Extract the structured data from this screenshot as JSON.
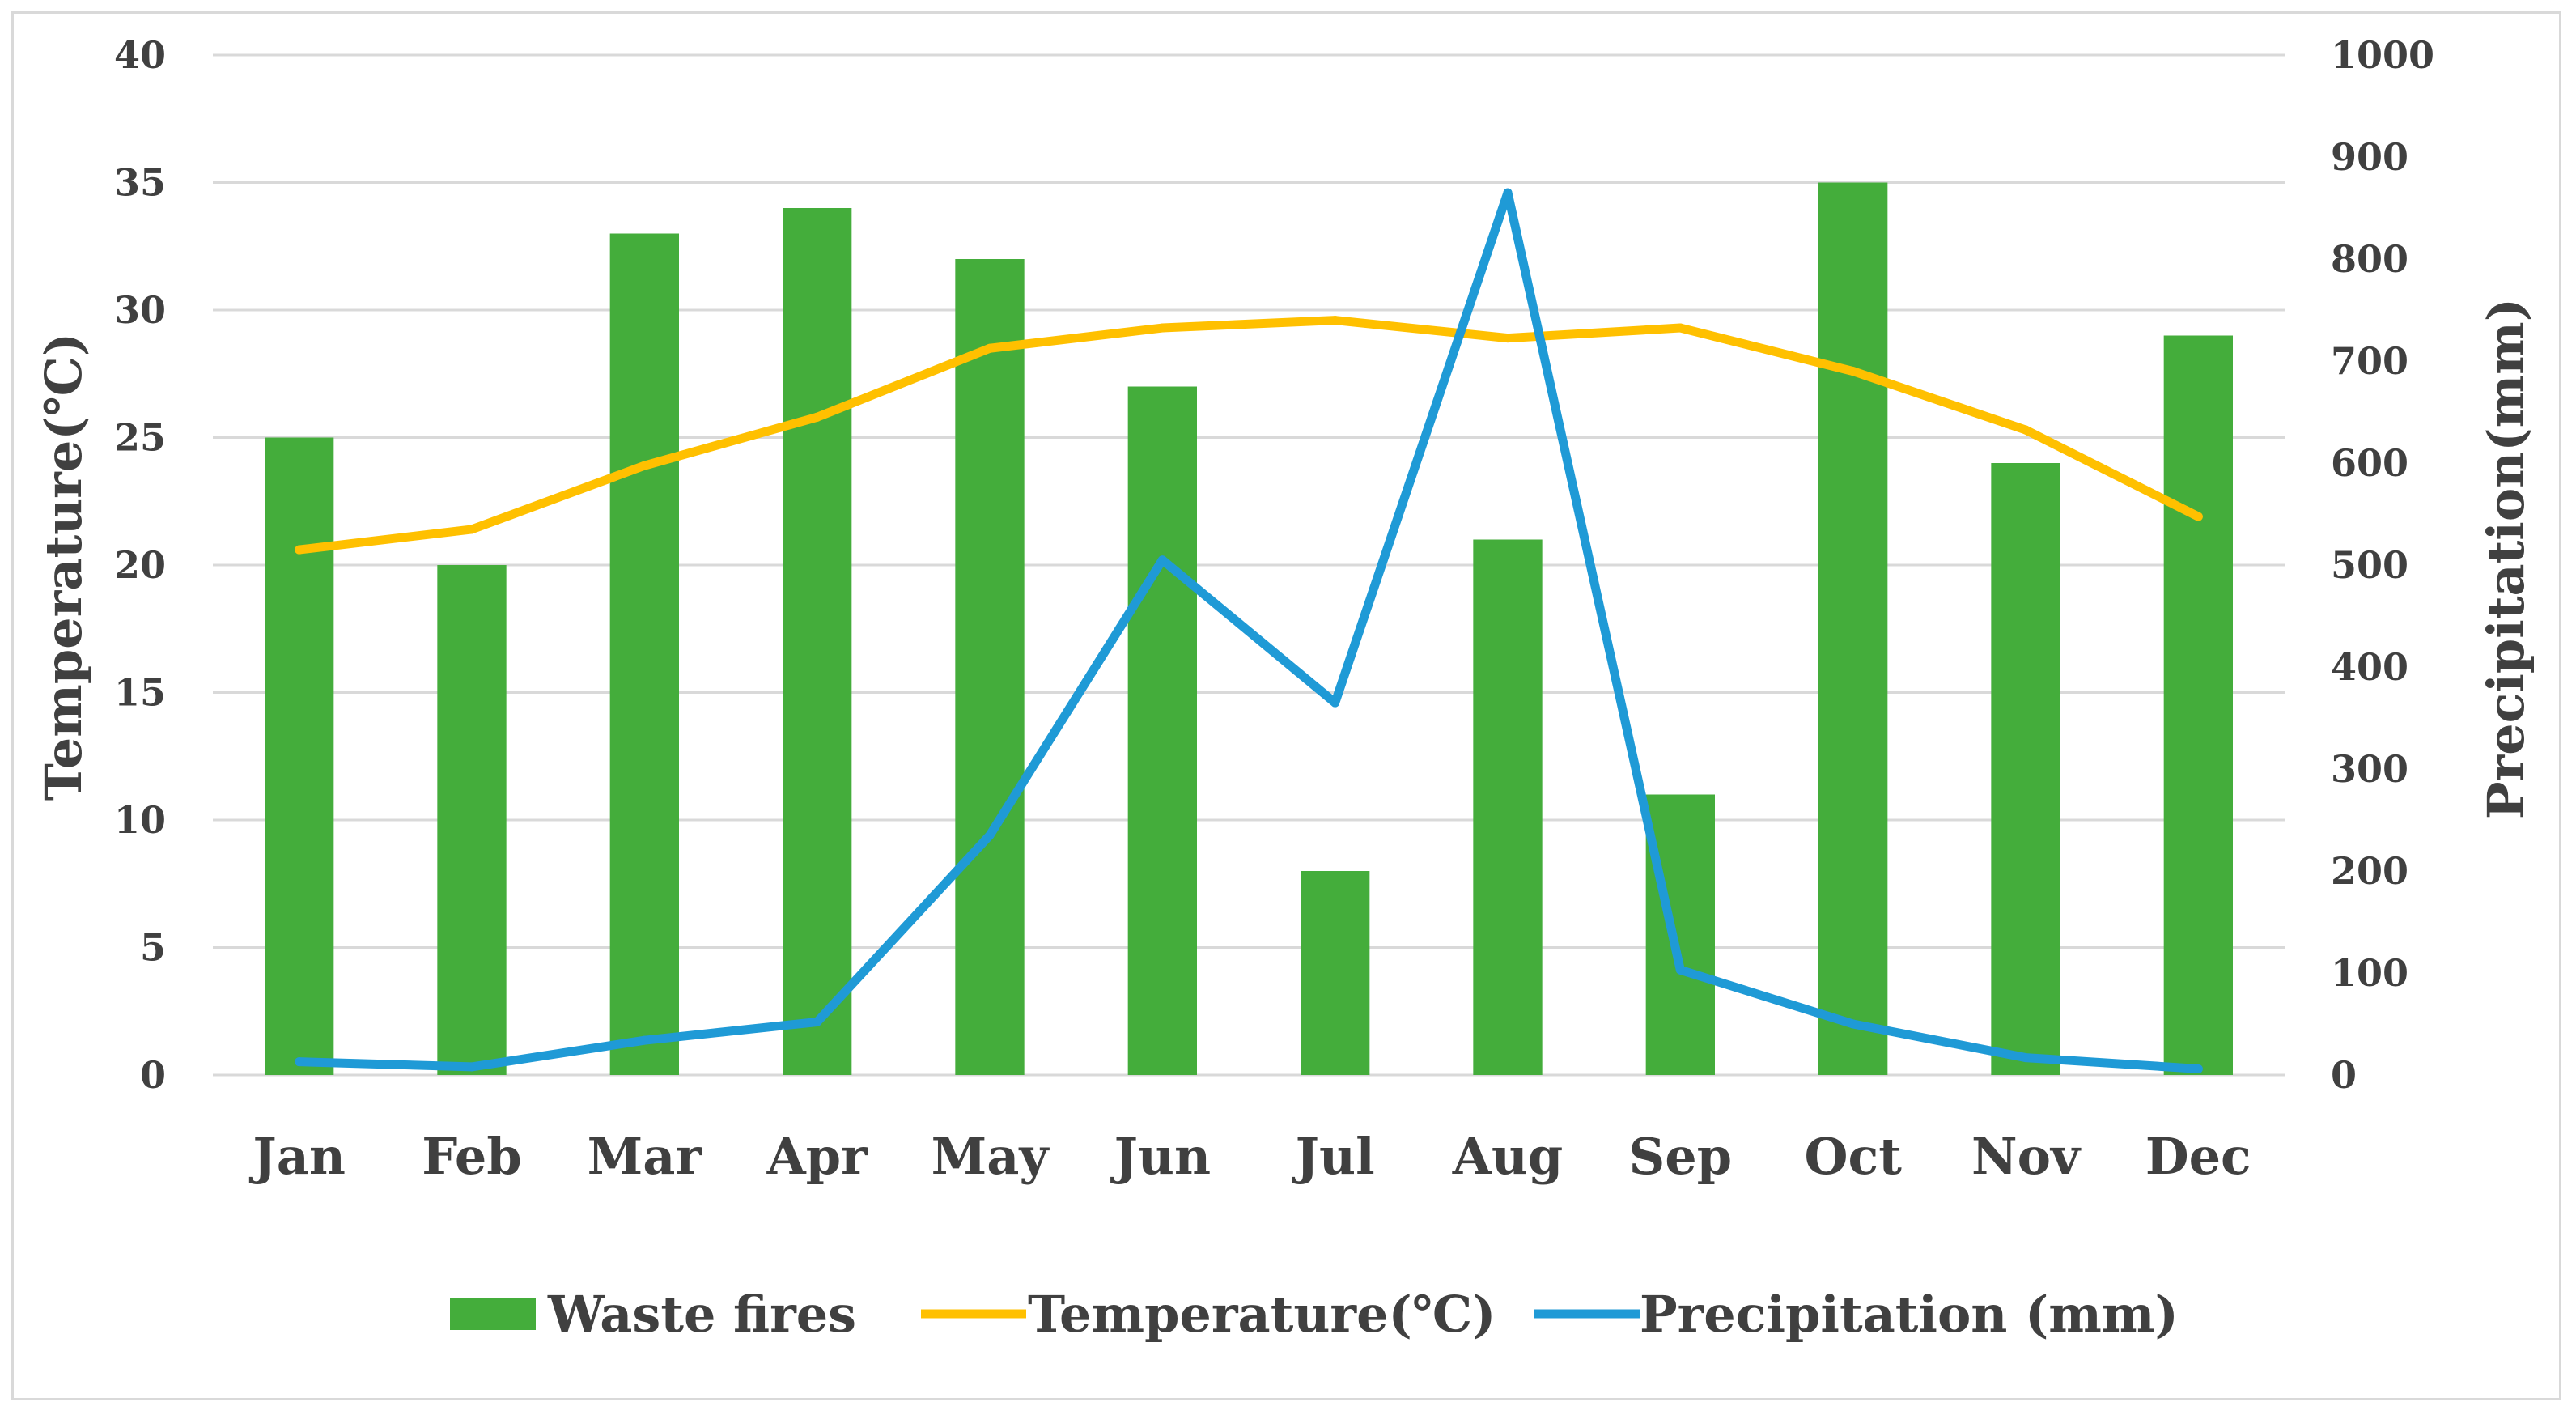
{
  "chart_data": {
    "type": "bar",
    "categories": [
      "Jan",
      "Feb",
      "Mar",
      "Apr",
      "May",
      "Jun",
      "Jul",
      "Aug",
      "Sep",
      "Oct",
      "Nov",
      "Dec"
    ],
    "series": [
      {
        "name": "Waste fires",
        "kind": "bar",
        "axis": "left",
        "color": "#44ad3b",
        "values": [
          25,
          20,
          33,
          34,
          32,
          27,
          8,
          21,
          11,
          35,
          24,
          29
        ]
      },
      {
        "name": "Temperature(℃)",
        "kind": "line",
        "axis": "left",
        "color": "#ffc000",
        "values": [
          20.6,
          21.4,
          23.9,
          25.8,
          28.5,
          29.3,
          29.6,
          28.9,
          29.3,
          27.6,
          25.3,
          21.9
        ]
      },
      {
        "name": "Precipitation (mm)",
        "kind": "line",
        "axis": "right",
        "color": "#1f9ad6",
        "values": [
          13,
          8,
          34,
          52,
          235,
          505,
          365,
          865,
          103,
          50,
          17,
          6
        ]
      }
    ],
    "y_left": {
      "label": "Temperature(℃)",
      "min": 0,
      "max": 40,
      "step": 5,
      "ticks": [
        "0",
        "5",
        "10",
        "15",
        "20",
        "25",
        "30",
        "35",
        "40"
      ]
    },
    "y_right": {
      "label": "Precipitation(mm)",
      "min": 0,
      "max": 1000,
      "step": 100,
      "ticks": [
        "0",
        "100",
        "200",
        "300",
        "400",
        "500",
        "600",
        "700",
        "800",
        "900",
        "1000"
      ]
    },
    "grid": true,
    "legend_position": "bottom",
    "legend": [
      {
        "label": "Waste fires",
        "swatch": "bar",
        "color": "#44ad3b"
      },
      {
        "label": "Temperature(℃)",
        "swatch": "line",
        "color": "#ffc000"
      },
      {
        "label": "Precipitation (mm)",
        "swatch": "line",
        "color": "#1f9ad6"
      }
    ],
    "gridline_color": "#d9d9d9"
  }
}
